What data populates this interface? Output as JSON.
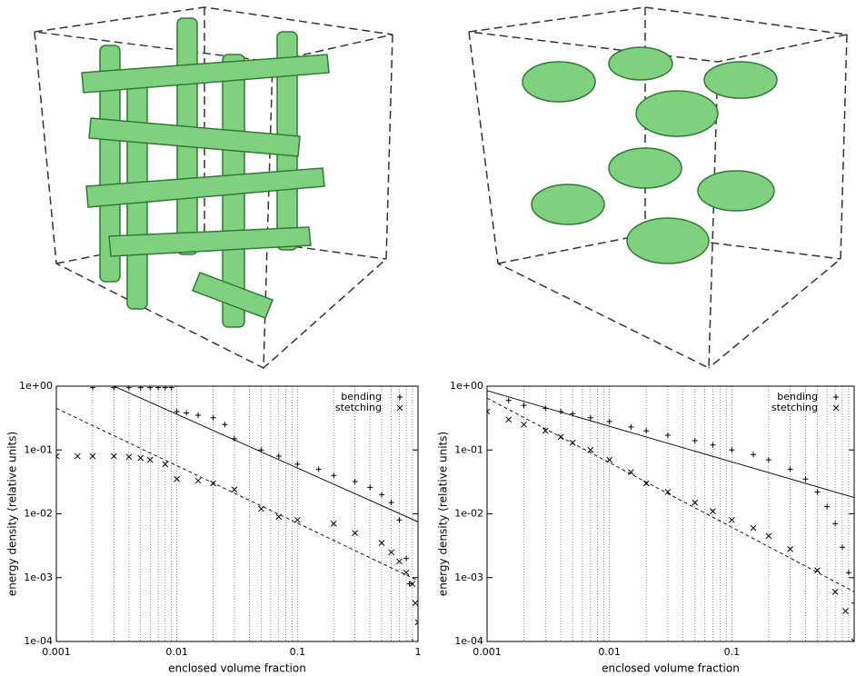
{
  "chart_data": [
    {
      "type": "scatter",
      "x_label": "enclosed volume fraction",
      "y_label": "energy density (relative units)",
      "xlim": [
        0.001,
        1
      ],
      "ylim": [
        0.0001,
        1
      ],
      "log_x": true,
      "log_y": true,
      "grid": "x",
      "xticks": [
        0.001,
        0.01,
        0.1,
        1
      ],
      "x_minor_grid": [
        0.002,
        0.003,
        0.004,
        0.005,
        0.006,
        0.007,
        0.008,
        0.009,
        0.02,
        0.03,
        0.04,
        0.05,
        0.06,
        0.07,
        0.08,
        0.09,
        0.2,
        0.3,
        0.4,
        0.5,
        0.6,
        0.7,
        0.8,
        0.9
      ],
      "yticks": [
        {
          "value": 0.0001,
          "label": "1e-04"
        },
        {
          "value": 0.001,
          "label": "1e-03"
        },
        {
          "value": 0.01,
          "label": "1e-02"
        },
        {
          "value": 0.1,
          "label": "1e-01"
        },
        {
          "value": 1,
          "label": "1e+00"
        }
      ],
      "legend": "upper right",
      "series": [
        {
          "name": "bending",
          "marker": "+",
          "color": "#000000",
          "x": [
            0.002,
            0.003,
            0.004,
            0.005,
            0.006,
            0.007,
            0.008,
            0.009,
            0.01,
            0.012,
            0.015,
            0.02,
            0.025,
            0.03,
            0.05,
            0.07,
            0.1,
            0.15,
            0.2,
            0.3,
            0.4,
            0.5,
            0.6,
            0.7,
            0.8,
            0.85,
            0.9
          ],
          "values": [
            0.95,
            0.95,
            0.95,
            0.95,
            0.95,
            0.95,
            0.95,
            0.95,
            0.4,
            0.38,
            0.35,
            0.32,
            0.25,
            0.15,
            0.1,
            0.08,
            0.06,
            0.05,
            0.04,
            0.032,
            0.026,
            0.02,
            0.015,
            0.008,
            0.002,
            0.0008,
            0.0001
          ]
        },
        {
          "name": "stetching",
          "marker": "x",
          "color": "#000000",
          "x": [
            0.001,
            0.0015,
            0.002,
            0.003,
            0.004,
            0.005,
            0.006,
            0.008,
            0.01,
            0.015,
            0.02,
            0.03,
            0.05,
            0.07,
            0.1,
            0.2,
            0.3,
            0.5,
            0.6,
            0.7,
            0.8,
            0.9,
            0.95,
            1
          ],
          "values": [
            0.08,
            0.08,
            0.08,
            0.08,
            0.078,
            0.075,
            0.07,
            0.06,
            0.035,
            0.033,
            0.03,
            0.024,
            0.012,
            0.009,
            0.008,
            0.007,
            0.005,
            0.0035,
            0.0025,
            0.0018,
            0.0012,
            0.0008,
            0.0004,
            0.0002
          ]
        },
        {
          "mode": "line",
          "style": "solid",
          "color": "#000000",
          "x": [
            0.003,
            1
          ],
          "values": [
            1,
            0.0075
          ]
        },
        {
          "mode": "line",
          "style": "dashed",
          "color": "#000000",
          "x": [
            0.001,
            1
          ],
          "values": [
            0.45,
            0.0009
          ]
        }
      ]
    },
    {
      "type": "scatter",
      "x_label": "enclosed volume fraction",
      "y_label": "energy density (relative units)",
      "xlim": [
        0.001,
        1
      ],
      "ylim": [
        0.0001,
        1
      ],
      "log_x": true,
      "log_y": true,
      "grid": "x",
      "xticks": [
        0.001,
        0.01,
        0.1
      ],
      "x_minor_grid": [
        0.002,
        0.003,
        0.004,
        0.005,
        0.006,
        0.007,
        0.008,
        0.009,
        0.02,
        0.03,
        0.04,
        0.05,
        0.06,
        0.07,
        0.08,
        0.09,
        0.2,
        0.3,
        0.4,
        0.5,
        0.6,
        0.7,
        0.8,
        0.9
      ],
      "yticks": [
        {
          "value": 0.0001,
          "label": "1e-04"
        },
        {
          "value": 0.001,
          "label": "1e-03"
        },
        {
          "value": 0.01,
          "label": "1e-02"
        },
        {
          "value": 0.1,
          "label": "1e-01"
        },
        {
          "value": 1,
          "label": "1e+00"
        }
      ],
      "legend": "upper right",
      "series": [
        {
          "name": "bending",
          "marker": "+",
          "color": "#000000",
          "x": [
            0.0015,
            0.002,
            0.003,
            0.004,
            0.005,
            0.007,
            0.01,
            0.015,
            0.02,
            0.03,
            0.05,
            0.07,
            0.1,
            0.15,
            0.2,
            0.3,
            0.4,
            0.5,
            0.6,
            0.7,
            0.8,
            0.9,
            1
          ],
          "values": [
            0.6,
            0.5,
            0.45,
            0.4,
            0.37,
            0.32,
            0.28,
            0.23,
            0.2,
            0.17,
            0.14,
            0.12,
            0.1,
            0.085,
            0.07,
            0.05,
            0.035,
            0.022,
            0.013,
            0.007,
            0.003,
            0.0012,
            0.0004
          ]
        },
        {
          "name": "stetching",
          "marker": "x",
          "color": "#000000",
          "x": [
            0.001,
            0.0015,
            0.002,
            0.003,
            0.004,
            0.005,
            0.007,
            0.01,
            0.015,
            0.02,
            0.03,
            0.05,
            0.07,
            0.1,
            0.15,
            0.2,
            0.3,
            0.5,
            0.7,
            0.85,
            1
          ],
          "values": [
            0.4,
            0.3,
            0.25,
            0.2,
            0.16,
            0.13,
            0.1,
            0.07,
            0.045,
            0.03,
            0.022,
            0.015,
            0.011,
            0.008,
            0.006,
            0.0045,
            0.0028,
            0.0013,
            0.0006,
            0.0003,
            0.0001
          ]
        },
        {
          "mode": "line",
          "style": "solid",
          "color": "#000000",
          "x": [
            0.001,
            1
          ],
          "values": [
            0.85,
            0.018
          ]
        },
        {
          "mode": "line",
          "style": "dashed",
          "color": "#000000",
          "x": [
            0.001,
            1
          ],
          "values": [
            0.65,
            0.0006
          ]
        }
      ]
    }
  ]
}
